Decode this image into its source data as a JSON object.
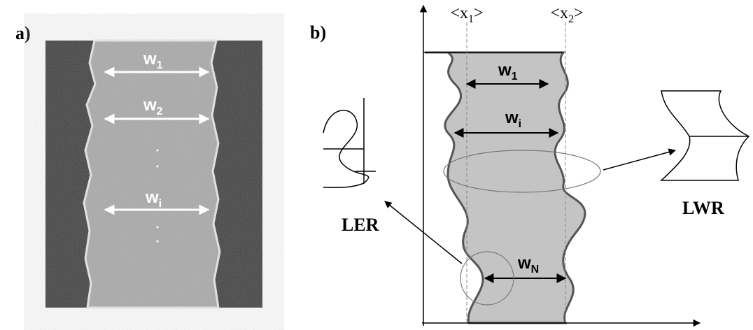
{
  "panel_a": {
    "label": "a)",
    "widths": [
      {
        "base": "w",
        "sub": "1"
      },
      {
        "base": "w",
        "sub": "2"
      },
      {
        "base": "w",
        "sub": "i"
      }
    ]
  },
  "panel_b": {
    "label": "b)",
    "edges": [
      {
        "open": "<",
        "base": "x",
        "sub": "1",
        "close": ">"
      },
      {
        "open": "<",
        "base": "x",
        "sub": "2",
        "close": ">"
      }
    ],
    "widths": [
      {
        "base": "w",
        "sub": "1"
      },
      {
        "base": "w",
        "sub": "i"
      },
      {
        "base": "w",
        "sub": "N"
      }
    ],
    "ler": "LER",
    "lwr": "LWR"
  }
}
